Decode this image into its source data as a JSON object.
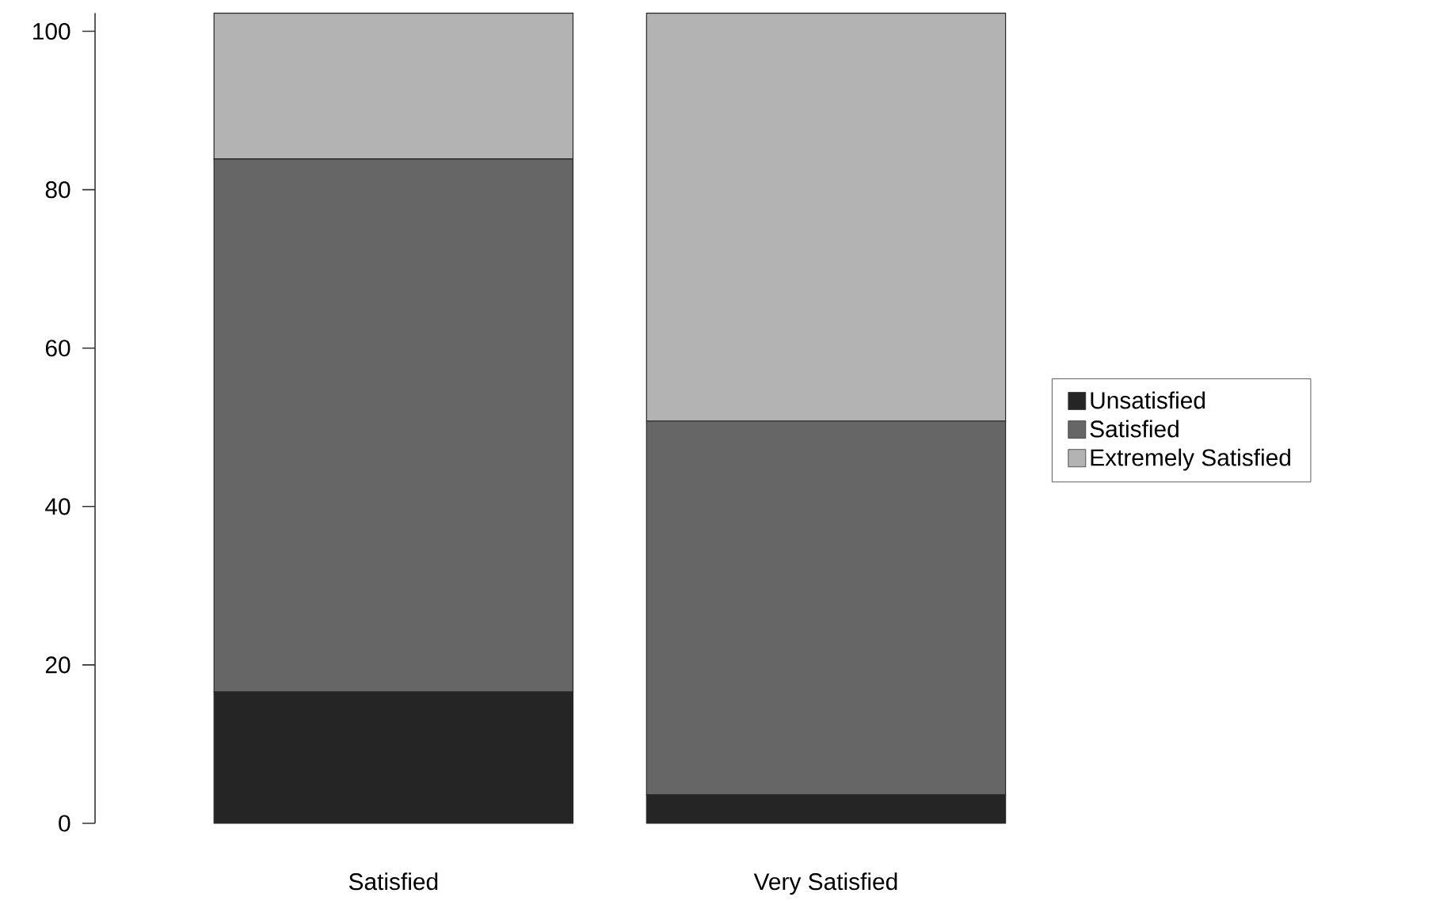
{
  "chart_data": {
    "type": "bar",
    "stacked": true,
    "categories": [
      "Satisfied",
      "Very Satisfied"
    ],
    "series": [
      {
        "name": "Unsatisfied",
        "color": "#252525",
        "values": [
          16.6,
          3.6
        ]
      },
      {
        "name": "Satisfied",
        "color": "#666666",
        "values": [
          67.3,
          47.2
        ]
      },
      {
        "name": "Extremely Satisfied",
        "color": "#b3b3b3",
        "values": [
          18.4,
          51.5
        ]
      }
    ],
    "ylim": [
      0,
      102.3
    ],
    "yticks": [
      0,
      20,
      40,
      60,
      80,
      100
    ],
    "grid": false,
    "legend": "right"
  }
}
